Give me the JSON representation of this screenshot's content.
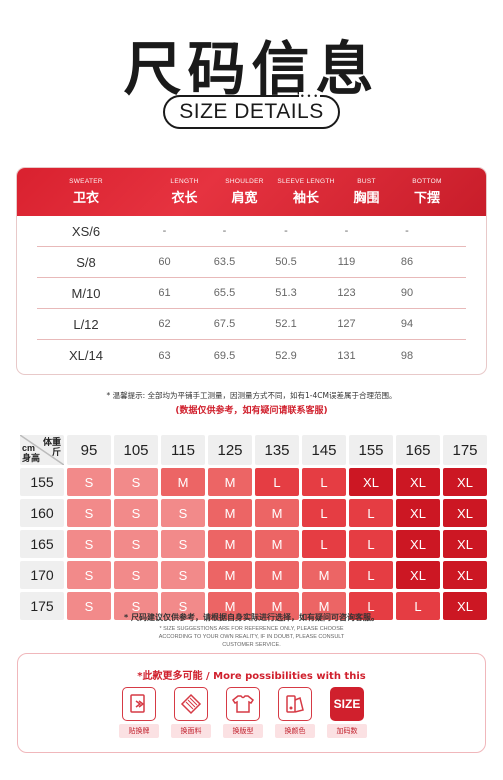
{
  "header": {
    "title_cn": "尺码信息",
    "title_en": "SIZE DETAILS",
    "dots": "• • •"
  },
  "size_table": {
    "columns": [
      {
        "en": "SWEATER",
        "cn": "卫衣"
      },
      {
        "en": "LENGTH",
        "cn": "衣长"
      },
      {
        "en": "SHOULDER",
        "cn": "肩宽"
      },
      {
        "en": "SLEEVE LENGTH",
        "cn": "袖长"
      },
      {
        "en": "BUST",
        "cn": "胸围"
      },
      {
        "en": "BOTTOM",
        "cn": "下摆"
      }
    ],
    "rows": [
      [
        "XS/6",
        "-",
        "-",
        "-",
        "-",
        "-"
      ],
      [
        "S/8",
        "60",
        "63.5",
        "50.5",
        "119",
        "86"
      ],
      [
        "M/10",
        "61",
        "65.5",
        "51.3",
        "123",
        "90"
      ],
      [
        "L/12",
        "62",
        "67.5",
        "52.1",
        "127",
        "94"
      ],
      [
        "XL/14",
        "63",
        "69.5",
        "52.9",
        "131",
        "98"
      ]
    ]
  },
  "notes": {
    "note1": "* 温馨提示: 全部均为平铺手工测量，因测量方式不同，如有1-4CM误差属于合理范围。",
    "note2": "(数据仅供参考，如有疑问请联系客服)",
    "note3": "* 尺码建议仅供参考，请根据自身实际进行选择，如有疑问可咨询客服。",
    "note4": "* SIZE SUGGESTIONS ARE FOR REFERENCE ONLY, PLEASE CHOOSE ACCORDING TO YOUR OWN REALITY, IF IN DOUBT, PLEASE CONSULT CUSTOMER SERVICE."
  },
  "recommend": {
    "weight_label": "体重\n斤",
    "height_label": "cm\n身高",
    "weights": [
      "95",
      "105",
      "115",
      "125",
      "135",
      "145",
      "155",
      "165",
      "175"
    ],
    "rows": [
      {
        "height": "155",
        "sizes": [
          "S",
          "S",
          "M",
          "M",
          "L",
          "L",
          "XL",
          "XL",
          "XL"
        ]
      },
      {
        "height": "160",
        "sizes": [
          "S",
          "S",
          "S",
          "M",
          "M",
          "L",
          "L",
          "XL",
          "XL"
        ]
      },
      {
        "height": "165",
        "sizes": [
          "S",
          "S",
          "S",
          "M",
          "M",
          "L",
          "L",
          "XL",
          "XL"
        ]
      },
      {
        "height": "170",
        "sizes": [
          "S",
          "S",
          "S",
          "M",
          "M",
          "M",
          "L",
          "XL",
          "XL"
        ]
      },
      {
        "height": "175",
        "sizes": [
          "S",
          "S",
          "S",
          "M",
          "M",
          "M",
          "L",
          "L",
          "XL"
        ]
      }
    ]
  },
  "more": {
    "title": "*此款更多可能 / More possibilities with this",
    "items": [
      {
        "label": "贴换牌",
        "icon": "tag-swap-icon"
      },
      {
        "label": "换面料",
        "icon": "fabric-swap-icon"
      },
      {
        "label": "换版型",
        "icon": "pattern-swap-icon"
      },
      {
        "label": "换颜色",
        "icon": "color-swap-icon"
      },
      {
        "label": "加码数",
        "icon": "size-add-icon",
        "box_text": "SIZE"
      }
    ]
  }
}
